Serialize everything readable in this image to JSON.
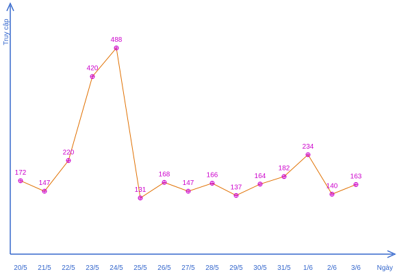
{
  "chart_data": {
    "type": "line",
    "xlabel": "Ngày",
    "ylabel": "Truy cập",
    "categories": [
      "20/5",
      "21/5",
      "22/5",
      "23/5",
      "24/5",
      "25/5",
      "26/5",
      "27/5",
      "28/5",
      "29/5",
      "30/5",
      "31/5",
      "1/6",
      "2/6",
      "3/6"
    ],
    "series": [
      {
        "values": [
          172,
          147,
          220,
          420,
          488,
          131,
          168,
          147,
          166,
          137,
          164,
          182,
          234,
          140,
          163
        ]
      }
    ],
    "ylim": [
      0,
      520
    ],
    "grid": false,
    "legend": "none",
    "colors": {
      "axis": "#3366cc",
      "line": "#e07000",
      "marker": "#cc00cc",
      "label": "#cc00cc"
    }
  }
}
